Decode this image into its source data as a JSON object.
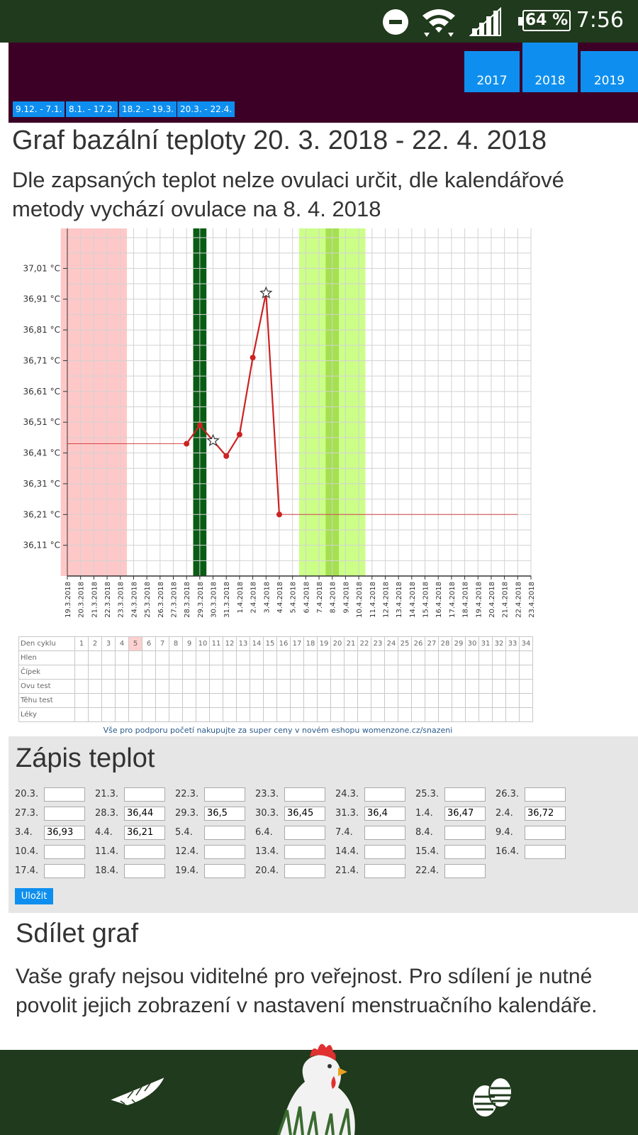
{
  "status": {
    "battery": "64 %",
    "time": "7:56"
  },
  "nav": {
    "years": [
      {
        "label": "2017"
      },
      {
        "label": "2018"
      },
      {
        "label": "2019"
      }
    ],
    "cycles": [
      {
        "label": "9.12. - 7.1."
      },
      {
        "label": "8.1. - 17.2."
      },
      {
        "label": "18.2. - 19.3."
      },
      {
        "label": "20.3. - 22.4."
      }
    ]
  },
  "title": "Graf bazální teploty 20. 3. 2018 - 22. 4. 2018",
  "subtitle": "Dle zapsaných teplot nelze ovulaci určit, dle kalendářové metody vychází ovulace na 8. 4. 2018",
  "chart_data": {
    "type": "line",
    "x": [
      "19.3.2018",
      "20.3.2018",
      "21.3.2018",
      "22.3.2018",
      "23.3.2018",
      "24.3.2018",
      "25.3.2018",
      "26.3.2018",
      "27.3.2018",
      "28.3.2018",
      "29.3.2018",
      "30.3.2018",
      "31.3.2018",
      "1.4.2018",
      "2.4.2018",
      "3.4.2018",
      "4.4.2018",
      "5.4.2018",
      "6.4.2018",
      "7.4.2018",
      "8.4.2018",
      "9.4.2018",
      "10.4.2018",
      "11.4.2018",
      "12.4.2018",
      "13.4.2018",
      "14.4.2018",
      "15.4.2018",
      "16.4.2018",
      "17.4.2018",
      "18.4.2018",
      "19.4.2018",
      "20.4.2018",
      "21.4.2018",
      "22.4.2018",
      "23.4.2018"
    ],
    "y_ticks": [
      "36,11 °C",
      "36,21 °C",
      "36,31 °C",
      "36,41 °C",
      "36,51 °C",
      "36,61 °C",
      "36,71 °C",
      "36,81 °C",
      "36,91 °C",
      "37,01 °C"
    ],
    "ylim": [
      36.01,
      37.14
    ],
    "series": [
      {
        "points": [
          {
            "x": "28.3.2018",
            "y": 36.44,
            "marker": "dot"
          },
          {
            "x": "29.3.2018",
            "y": 36.5,
            "marker": "dot"
          },
          {
            "x": "30.3.2018",
            "y": 36.45,
            "marker": "star"
          },
          {
            "x": "31.3.2018",
            "y": 36.4,
            "marker": "dot"
          },
          {
            "x": "1.4.2018",
            "y": 36.47,
            "marker": "dot"
          },
          {
            "x": "2.4.2018",
            "y": 36.72,
            "marker": "dot"
          },
          {
            "x": "3.4.2018",
            "y": 36.93,
            "marker": "star"
          },
          {
            "x": "4.4.2018",
            "y": 36.21,
            "marker": "dot"
          }
        ],
        "baseline_before": {
          "from": "19.3.2018",
          "y": 36.44
        },
        "baseline_after": {
          "to": "22.4.2018",
          "y": 36.21
        }
      }
    ],
    "bands": [
      {
        "from": "19.3.2018",
        "to": "23.3.2018",
        "color": "#ffc8c8",
        "meaning": "menstruation"
      },
      {
        "from": "29.3.2018",
        "to": "29.3.2018",
        "color": "#0a5c14",
        "meaning": "marked day"
      },
      {
        "from": "6.4.2018",
        "to": "10.4.2018",
        "color": "#ccff88",
        "meaning": "fertile window"
      },
      {
        "from": "8.4.2018",
        "to": "8.4.2018",
        "color": "#a5e050",
        "meaning": "ovulation"
      }
    ],
    "line_color": "#cc2222",
    "grid": true
  },
  "cycle_table": {
    "header_label": "Den cyklu",
    "days": [
      "1",
      "2",
      "3",
      "4",
      "5",
      "6",
      "7",
      "8",
      "9",
      "10",
      "11",
      "12",
      "13",
      "14",
      "15",
      "16",
      "17",
      "18",
      "19",
      "20",
      "21",
      "22",
      "23",
      "24",
      "25",
      "26",
      "27",
      "28",
      "29",
      "30",
      "31",
      "32",
      "33",
      "34"
    ],
    "highlight_day": "5",
    "rows": [
      "Hlen",
      "Čípek",
      "Ovu test",
      "Těhu test",
      "Léky"
    ]
  },
  "ad_text": "Vše pro podporu početí nakupujte za super ceny v novém eshopu womenzone.cz/snazeni",
  "zapis": {
    "title": "Zápis teplot",
    "entries": [
      {
        "date": "20.3.",
        "value": ""
      },
      {
        "date": "21.3.",
        "value": ""
      },
      {
        "date": "22.3.",
        "value": ""
      },
      {
        "date": "23.3.",
        "value": ""
      },
      {
        "date": "24.3.",
        "value": ""
      },
      {
        "date": "25.3.",
        "value": ""
      },
      {
        "date": "26.3.",
        "value": ""
      },
      {
        "date": "27.3.",
        "value": ""
      },
      {
        "date": "28.3.",
        "value": "36,44"
      },
      {
        "date": "29.3.",
        "value": "36,5"
      },
      {
        "date": "30.3.",
        "value": "36,45"
      },
      {
        "date": "31.3.",
        "value": "36,4"
      },
      {
        "date": "1.4.",
        "value": "36,47"
      },
      {
        "date": "2.4.",
        "value": "36,72"
      },
      {
        "date": "3.4.",
        "value": "36,93"
      },
      {
        "date": "4.4.",
        "value": "36,21"
      },
      {
        "date": "5.4.",
        "value": ""
      },
      {
        "date": "6.4.",
        "value": ""
      },
      {
        "date": "7.4.",
        "value": ""
      },
      {
        "date": "8.4.",
        "value": ""
      },
      {
        "date": "9.4.",
        "value": ""
      },
      {
        "date": "10.4.",
        "value": ""
      },
      {
        "date": "11.4.",
        "value": ""
      },
      {
        "date": "12.4.",
        "value": ""
      },
      {
        "date": "13.4.",
        "value": ""
      },
      {
        "date": "14.4.",
        "value": ""
      },
      {
        "date": "15.4.",
        "value": ""
      },
      {
        "date": "16.4.",
        "value": ""
      },
      {
        "date": "17.4.",
        "value": ""
      },
      {
        "date": "18.4.",
        "value": ""
      },
      {
        "date": "19.4.",
        "value": ""
      },
      {
        "date": "20.4.",
        "value": ""
      },
      {
        "date": "21.4.",
        "value": ""
      },
      {
        "date": "22.4.",
        "value": ""
      }
    ],
    "save_label": "Uložit"
  },
  "share": {
    "title": "Sdílet graf",
    "text": "Vaše grafy nejsou viditelné pro veřejnost. Pro sdílení je nutné povolit jejich zobrazení v nastavení menstruačního kalendáře."
  },
  "bottom_nav": {
    "icons": [
      "feather-icon",
      "hen-icon",
      "eggs-icon"
    ]
  }
}
